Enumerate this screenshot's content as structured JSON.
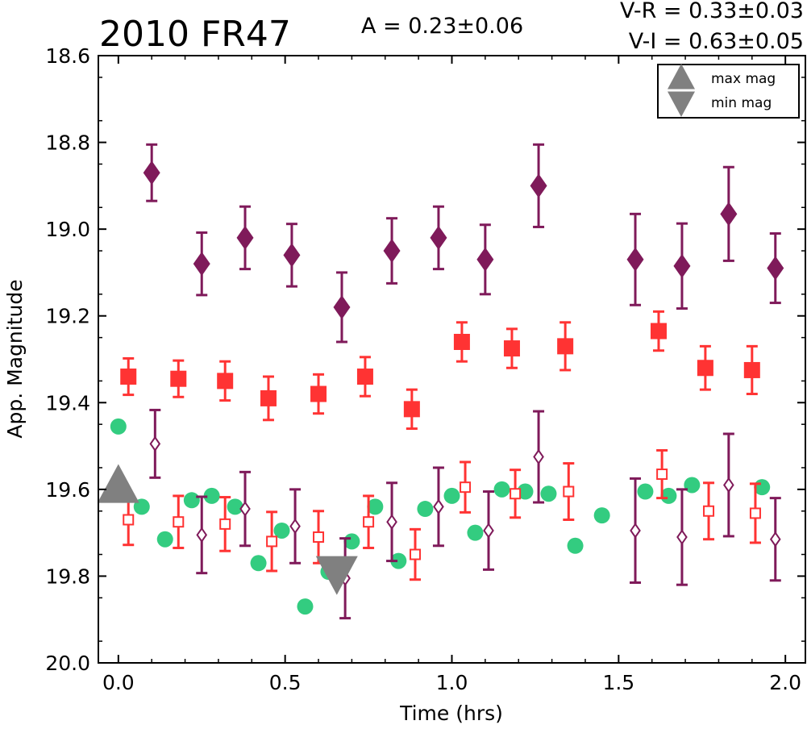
{
  "chart_data": {
    "type": "scatter",
    "title": "2010 FR47",
    "amplitude_label": "A  = 0.23±0.06",
    "color_labels": [
      "V-R = 0.33±0.03",
      "V-I  = 0.63±0.05"
    ],
    "xlabel": "Time (hrs)",
    "ylabel": "App. Magnitude",
    "xlim": [
      -0.06,
      2.06
    ],
    "ylim": [
      20.0,
      18.6
    ],
    "y_inverted": true,
    "grid": false,
    "x_ticks": [
      "0.0",
      "0.5",
      "1.0",
      "1.5",
      "2.0"
    ],
    "y_ticks": [
      "18.6",
      "18.8",
      "19.0",
      "19.2",
      "19.4",
      "19.6",
      "19.8",
      "20.0"
    ],
    "legend": {
      "position": "top-right",
      "entries": [
        {
          "label": "max mag",
          "marker": "triangle-up",
          "color": "#808080"
        },
        {
          "label": "min mag",
          "marker": "triangle-down",
          "color": "#808080"
        }
      ]
    },
    "markers": [
      {
        "name": "max mag",
        "x": 0.0,
        "y": 19.59,
        "color": "#808080",
        "marker": "triangle-up"
      },
      {
        "name": "min mag",
        "x": 0.655,
        "y": 19.795,
        "color": "#808080",
        "marker": "triangle-down"
      }
    ],
    "series": [
      {
        "marker": "diamond",
        "color": "#7f1a5a",
        "fill": true,
        "x": [
          0.1,
          0.25,
          0.38,
          0.52,
          0.67,
          0.82,
          0.96,
          1.1,
          1.26,
          1.55,
          1.69,
          1.83,
          1.97
        ],
        "y": [
          18.87,
          19.08,
          19.02,
          19.06,
          19.18,
          19.05,
          19.02,
          19.07,
          18.9,
          19.07,
          19.085,
          18.965,
          19.09
        ],
        "err": [
          0.065,
          0.072,
          0.072,
          0.072,
          0.08,
          0.075,
          0.072,
          0.08,
          0.095,
          0.105,
          0.098,
          0.108,
          0.08
        ]
      },
      {
        "marker": "square",
        "color": "#ff3333",
        "fill": true,
        "x": [
          0.03,
          0.18,
          0.32,
          0.45,
          0.6,
          0.74,
          0.88,
          1.03,
          1.18,
          1.34,
          1.62,
          1.76,
          1.9
        ],
        "y": [
          19.34,
          19.345,
          19.35,
          19.39,
          19.38,
          19.34,
          19.415,
          19.26,
          19.275,
          19.27,
          19.235,
          19.32,
          19.325
        ],
        "err": [
          0.042,
          0.042,
          0.045,
          0.05,
          0.045,
          0.045,
          0.045,
          0.045,
          0.045,
          0.055,
          0.045,
          0.05,
          0.055
        ]
      },
      {
        "marker": "circle",
        "color": "#33cc80",
        "fill": true,
        "x": [
          0.0,
          0.07,
          0.14,
          0.22,
          0.28,
          0.35,
          0.42,
          0.49,
          0.56,
          0.63,
          0.7,
          0.77,
          0.84,
          0.92,
          1.0,
          1.07,
          1.15,
          1.22,
          1.29,
          1.37,
          1.45,
          1.58,
          1.65,
          1.72,
          1.93
        ],
        "y": [
          19.455,
          19.64,
          19.715,
          19.625,
          19.615,
          19.64,
          19.77,
          19.695,
          19.87,
          19.79,
          19.72,
          19.64,
          19.765,
          19.645,
          19.615,
          19.7,
          19.6,
          19.605,
          19.61,
          19.73,
          19.66,
          19.605,
          19.615,
          19.59,
          19.595
        ]
      },
      {
        "marker": "diamond",
        "color": "#7f1a5a",
        "fill": false,
        "x": [
          0.11,
          0.25,
          0.38,
          0.53,
          0.68,
          0.82,
          0.96,
          1.11,
          1.26,
          1.55,
          1.69,
          1.83,
          1.97
        ],
        "y": [
          19.495,
          19.705,
          19.645,
          19.685,
          19.805,
          19.675,
          19.64,
          19.695,
          19.525,
          19.695,
          19.71,
          19.59,
          19.715
        ],
        "err": [
          0.078,
          0.088,
          0.085,
          0.085,
          0.092,
          0.09,
          0.09,
          0.09,
          0.105,
          0.12,
          0.11,
          0.118,
          0.095
        ]
      },
      {
        "marker": "square",
        "color": "#ff3333",
        "fill": false,
        "x": [
          0.03,
          0.18,
          0.32,
          0.46,
          0.6,
          0.75,
          0.89,
          1.04,
          1.19,
          1.35,
          1.63,
          1.77,
          1.91
        ],
        "y": [
          19.67,
          19.675,
          19.68,
          19.72,
          19.71,
          19.675,
          19.75,
          19.595,
          19.61,
          19.605,
          19.565,
          19.65,
          19.655
        ],
        "err": [
          0.058,
          0.06,
          0.062,
          0.068,
          0.06,
          0.06,
          0.058,
          0.058,
          0.055,
          0.065,
          0.055,
          0.065,
          0.068
        ]
      }
    ]
  }
}
